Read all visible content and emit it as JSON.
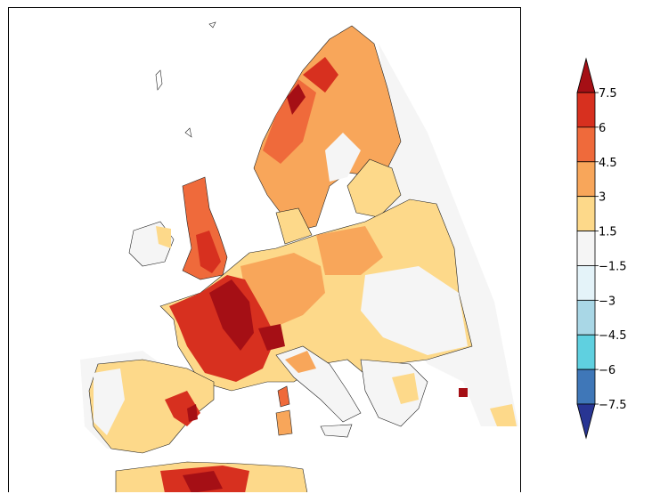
{
  "colorbar": {
    "tick_labels": [
      "7.5",
      "6",
      "4.5",
      "3",
      "1.5",
      "−1.5",
      "−3",
      "−4.5",
      "−6",
      "−7.5"
    ],
    "bins": [
      {
        "range": "over 7.5",
        "color": "#a50f15"
      },
      {
        "range": "6 to 7.5",
        "color": "#d7301f"
      },
      {
        "range": "4.5 to 6",
        "color": "#ef6a3b"
      },
      {
        "range": "3 to 4.5",
        "color": "#f8a65a"
      },
      {
        "range": "1.5 to 3",
        "color": "#fdd98a"
      },
      {
        "range": "-1.5 to 1.5",
        "color": "#f5f5f5"
      },
      {
        "range": "-3 to -1.5",
        "color": "#e4f3f9"
      },
      {
        "range": "-4.5 to -3",
        "color": "#a9d7e6"
      },
      {
        "range": "-6 to -4.5",
        "color": "#5fd0e0"
      },
      {
        "range": "-7.5 to -6",
        "color": "#3f77b8"
      },
      {
        "range": "below -7.5",
        "color": "#283593"
      }
    ]
  }
}
